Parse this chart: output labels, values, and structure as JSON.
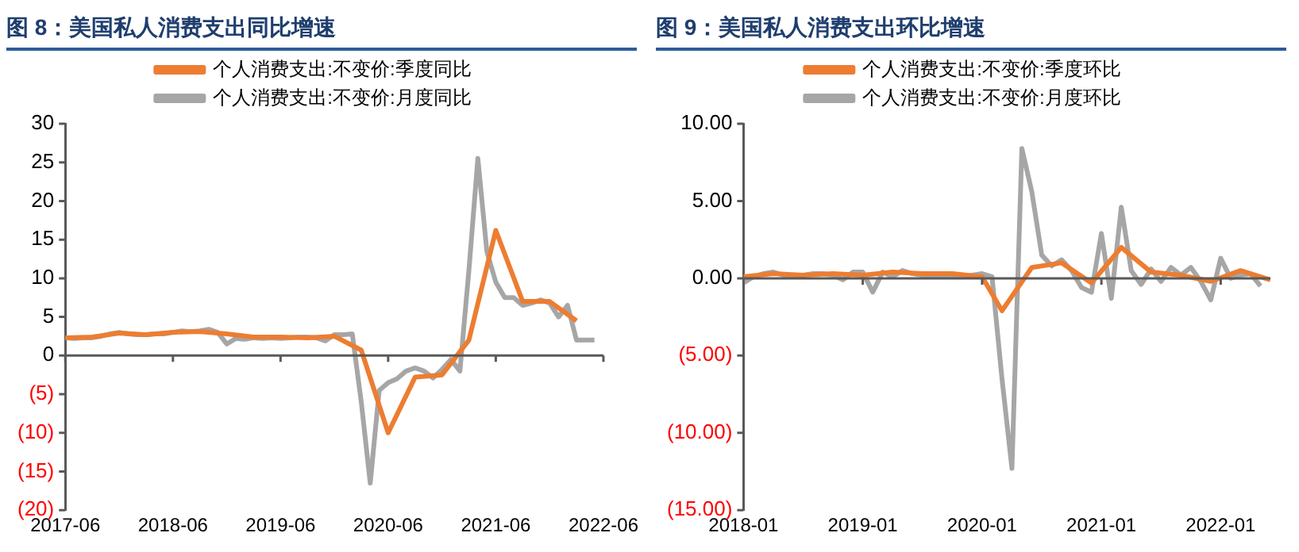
{
  "chart_data": [
    {
      "type": "line",
      "title": "图 8：美国私人消费支出同比增速",
      "legend": "top",
      "marker": "none",
      "line_style": "solid",
      "xlim": [
        "2017-06",
        "2022-06"
      ],
      "xticks": [
        "2017-06",
        "2018-06",
        "2019-06",
        "2020-06",
        "2021-06",
        "2022-06"
      ],
      "ylim": [
        -20,
        30
      ],
      "yticks": [
        {
          "value": -20,
          "label": "(20)"
        },
        {
          "value": -15,
          "label": "(15)"
        },
        {
          "value": -10,
          "label": "(10)"
        },
        {
          "value": -5,
          "label": "(5)"
        },
        0,
        5,
        10,
        15,
        20,
        25,
        30
      ],
      "series": [
        {
          "name": "个人消费支出:不变价:季度同比",
          "color": "#ed7d31",
          "x": [
            "2017-06",
            "2017-09",
            "2017-12",
            "2018-03",
            "2018-06",
            "2018-09",
            "2018-12",
            "2019-03",
            "2019-06",
            "2019-09",
            "2019-12",
            "2020-03",
            "2020-06",
            "2020-09",
            "2020-12",
            "2021-03",
            "2021-06",
            "2021-09",
            "2021-12",
            "2022-03"
          ],
          "values": [
            2.3,
            2.4,
            2.9,
            2.7,
            3.0,
            3.1,
            2.8,
            2.4,
            2.4,
            2.3,
            2.5,
            0.7,
            -10,
            -2.8,
            -2.5,
            2,
            16.2,
            7,
            7,
            4.5
          ]
        },
        {
          "name": "个人消费支出:不变价:月度同比",
          "color": "#a6a6a6",
          "x": [
            "2017-06",
            "2017-07",
            "2017-08",
            "2017-09",
            "2017-10",
            "2017-11",
            "2017-12",
            "2018-01",
            "2018-02",
            "2018-03",
            "2018-04",
            "2018-05",
            "2018-06",
            "2018-07",
            "2018-08",
            "2018-09",
            "2018-10",
            "2018-11",
            "2018-12",
            "2019-01",
            "2019-02",
            "2019-03",
            "2019-04",
            "2019-05",
            "2019-06",
            "2019-07",
            "2019-08",
            "2019-09",
            "2019-10",
            "2019-11",
            "2019-12",
            "2020-01",
            "2020-02",
            "2020-03",
            "2020-04",
            "2020-05",
            "2020-06",
            "2020-07",
            "2020-08",
            "2020-09",
            "2020-10",
            "2020-11",
            "2020-12",
            "2021-01",
            "2021-02",
            "2021-03",
            "2021-04",
            "2021-05",
            "2021-06",
            "2021-07",
            "2021-08",
            "2021-09",
            "2021-10",
            "2021-11",
            "2021-12",
            "2022-01",
            "2022-02",
            "2022-03",
            "2022-04",
            "2022-05"
          ],
          "values": [
            2.3,
            2.2,
            2.3,
            2.3,
            2.5,
            2.8,
            3.0,
            2.8,
            2.7,
            2.7,
            2.8,
            2.8,
            3.0,
            3.2,
            3.1,
            3.2,
            3.4,
            3.0,
            1.5,
            2.2,
            2.1,
            2.3,
            2.2,
            2.3,
            2.2,
            2.3,
            2.4,
            2.4,
            2.3,
            1.9,
            2.7,
            2.7,
            2.8,
            -6,
            -16.5,
            -4.5,
            -3.5,
            -3,
            -2,
            -1.6,
            -2,
            -2.9,
            -1.8,
            -0.5,
            -2,
            11,
            25.5,
            13.5,
            9.5,
            7.5,
            7.5,
            6.5,
            6.8,
            7.2,
            6.8,
            5,
            6.5,
            2,
            2,
            2
          ]
        }
      ]
    },
    {
      "type": "line",
      "title": "图 9：美国私人消费支出环比增速",
      "legend": "top",
      "marker": "none",
      "line_style": "solid",
      "xlim": [
        "2018-01",
        "2022-06"
      ],
      "xticks": [
        "2018-01",
        "2019-01",
        "2020-01",
        "2021-01",
        "2022-01"
      ],
      "ylim": [
        -15,
        10
      ],
      "yticks": [
        {
          "value": -15,
          "label": "(15.00)"
        },
        {
          "value": -10,
          "label": "(10.00)"
        },
        {
          "value": -5,
          "label": "(5.00)"
        },
        {
          "value": 0,
          "label": "0.00"
        },
        {
          "value": 5,
          "label": "5.00"
        },
        {
          "value": 10,
          "label": "10.00"
        }
      ],
      "series": [
        {
          "name": "个人消费支出:不变价:季度环比",
          "color": "#ed7d31",
          "x": [
            "2018-01",
            "2018-04",
            "2018-07",
            "2018-10",
            "2019-01",
            "2019-04",
            "2019-07",
            "2019-10",
            "2020-01",
            "2020-03",
            "2020-06",
            "2020-09",
            "2020-12",
            "2021-03",
            "2021-06",
            "2021-09",
            "2021-12",
            "2022-03",
            "2022-06"
          ],
          "values": [
            0.1,
            0.3,
            0.2,
            0.3,
            0.2,
            0.4,
            0.3,
            0.3,
            0.1,
            -2.1,
            0.7,
            1.0,
            -0.3,
            2.0,
            0.4,
            0.2,
            -0.2,
            0.5,
            -0.1
          ]
        },
        {
          "name": "个人消费支出:不变价:月度环比",
          "color": "#a6a6a6",
          "x": [
            "2018-01",
            "2018-02",
            "2018-03",
            "2018-04",
            "2018-05",
            "2018-06",
            "2018-07",
            "2018-08",
            "2018-09",
            "2018-10",
            "2018-11",
            "2018-12",
            "2019-01",
            "2019-02",
            "2019-03",
            "2019-04",
            "2019-05",
            "2019-06",
            "2019-07",
            "2019-08",
            "2019-09",
            "2019-10",
            "2019-11",
            "2019-12",
            "2020-01",
            "2020-02",
            "2020-03",
            "2020-04",
            "2020-05",
            "2020-06",
            "2020-07",
            "2020-08",
            "2020-09",
            "2020-10",
            "2020-11",
            "2020-12",
            "2021-01",
            "2021-02",
            "2021-03",
            "2021-04",
            "2021-05",
            "2021-06",
            "2021-07",
            "2021-08",
            "2021-09",
            "2021-10",
            "2021-11",
            "2021-12",
            "2022-01",
            "2022-02",
            "2022-03",
            "2022-04",
            "2022-05"
          ],
          "values": [
            -0.3,
            0.1,
            0.3,
            0.4,
            0.2,
            0.1,
            0.2,
            0.3,
            0.3,
            0.2,
            -0.1,
            0.4,
            0.4,
            -0.9,
            0.4,
            0.1,
            0.5,
            0.3,
            0.2,
            0.2,
            0.2,
            0.2,
            0.1,
            0.2,
            0.3,
            0.1,
            -6.5,
            -12.3,
            8.4,
            5.6,
            1.5,
            0.8,
            1.2,
            0.5,
            -0.6,
            -0.9,
            2.9,
            -1.3,
            4.6,
            0.5,
            -0.4,
            0.6,
            -0.2,
            0.7,
            0.2,
            0.7,
            -0.2,
            -1.4,
            1.3,
            0.0,
            0.2,
            0.3,
            -0.5
          ]
        }
      ]
    }
  ]
}
